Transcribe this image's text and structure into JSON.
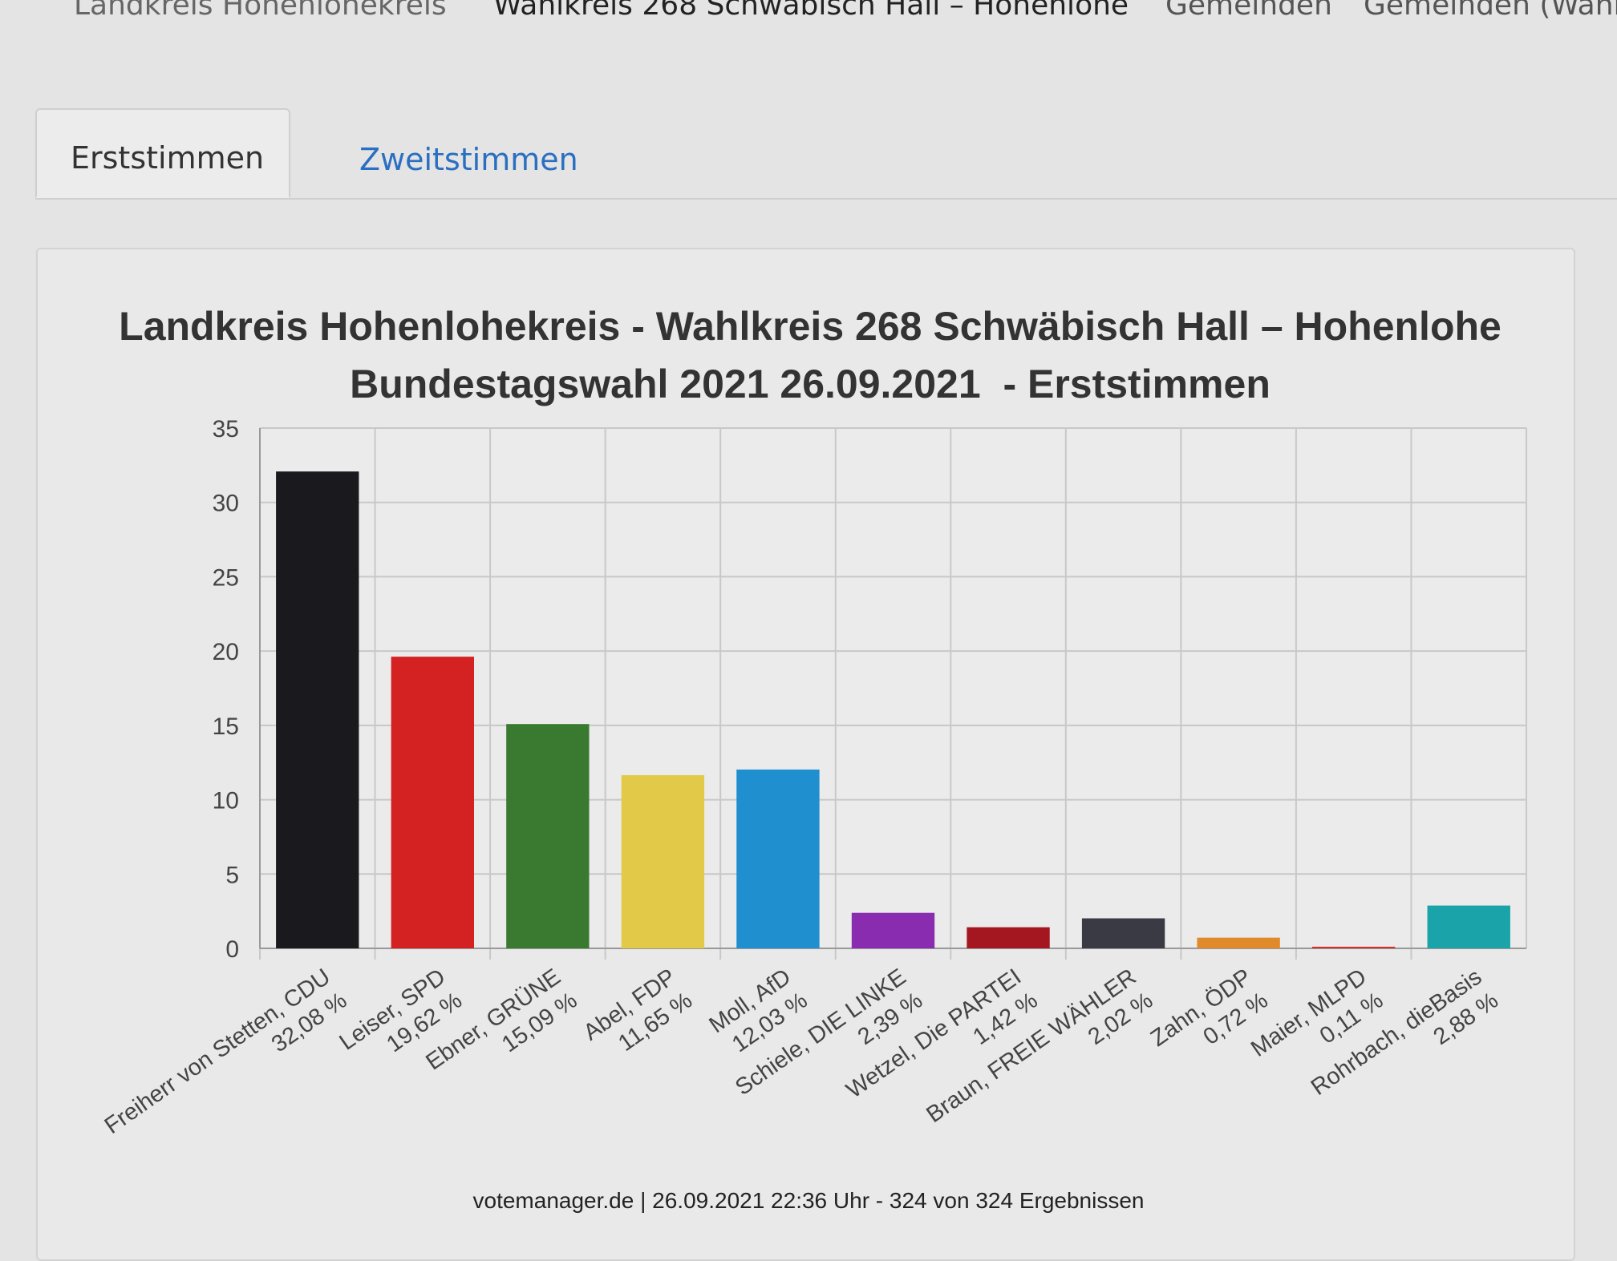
{
  "topnav": {
    "items": [
      "Landkreis Hohenlohekreis",
      "Wahlkreis 268 Schwäbisch Hall – Hohenlohe",
      "Gemeinden",
      "Gemeinden (Wahl"
    ]
  },
  "tabs": [
    {
      "label": "Erststimmen",
      "active": true
    },
    {
      "label": "Zweitstimmen",
      "active": false
    }
  ],
  "chart_data": {
    "type": "bar",
    "title": "Landkreis Hohenlohekreis - Wahlkreis 268 Schwäbisch Hall – Hohenlohe",
    "subtitle": "Bundestagswahl 2021 26.09.2021  - Erststimmen",
    "ylim": [
      0,
      35
    ],
    "yticks": [
      "0",
      "5",
      "10",
      "15",
      "20",
      "25",
      "30",
      "35"
    ],
    "grid": true,
    "categories": [
      {
        "name": "Freiherr von Stetten, CDU",
        "label": "32,08 %",
        "value": 32.08,
        "color": "#1a1a1e"
      },
      {
        "name": "Leiser, SPD",
        "label": "19,62 %",
        "value": 19.62,
        "color": "#d42121"
      },
      {
        "name": "Ebner, GRÜNE",
        "label": "15,09 %",
        "value": 15.09,
        "color": "#3a7a30"
      },
      {
        "name": "Abel, FDP",
        "label": "11,65 %",
        "value": 11.65,
        "color": "#e2c948"
      },
      {
        "name": "Moll, AfD",
        "label": "12,03 %",
        "value": 12.03,
        "color": "#1f8fd0"
      },
      {
        "name": "Schiele, DIE LINKE",
        "label": "2,39 %",
        "value": 2.39,
        "color": "#8a2cb0"
      },
      {
        "name": "Wetzel, Die PARTEI",
        "label": "1,42 %",
        "value": 1.42,
        "color": "#a41620"
      },
      {
        "name": "Braun, FREIE WÄHLER",
        "label": "2,02 %",
        "value": 2.02,
        "color": "#3a3a44"
      },
      {
        "name": "Zahn, ÖDP",
        "label": "0,72 %",
        "value": 0.72,
        "color": "#e08a2c"
      },
      {
        "name": "Maier, MLPD",
        "label": "0,11 %",
        "value": 0.11,
        "color": "#d03030"
      },
      {
        "name": "Rohrbach, dieBasis",
        "label": "2,88 %",
        "value": 2.88,
        "color": "#1aa3a8"
      }
    ]
  },
  "footer": "votemanager.de | 26.09.2021 22:36 Uhr - 324 von 324 Ergebnissen"
}
